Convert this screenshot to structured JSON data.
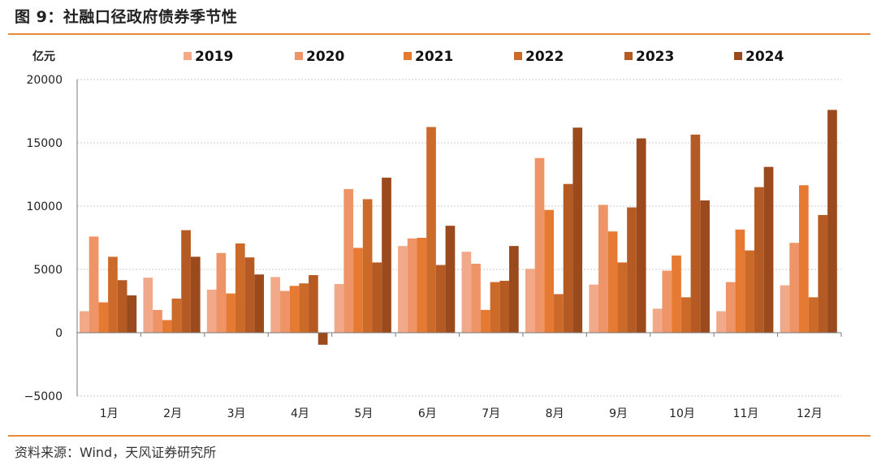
{
  "figure": {
    "title": "图 9：社融口径政府债券季节性",
    "source": "资料来源：Wind，天风证券研究所"
  },
  "colors": {
    "rule": "#E8883A",
    "series": [
      "#F2A98A",
      "#EE9466",
      "#E67A32",
      "#CC6A2A",
      "#B65A24",
      "#9A4A1C"
    ]
  },
  "chart_data": {
    "type": "bar",
    "unit_label": "亿元",
    "categories": [
      "1月",
      "2月",
      "3月",
      "4月",
      "5月",
      "6月",
      "7月",
      "8月",
      "9月",
      "10月",
      "11月",
      "12月"
    ],
    "series": [
      {
        "name": "2019",
        "values": [
          1700,
          4350,
          3400,
          4400,
          3850,
          6850,
          6400,
          5050,
          3800,
          1900,
          1700,
          3750
        ]
      },
      {
        "name": "2020",
        "values": [
          7600,
          1800,
          6300,
          3300,
          11350,
          7450,
          5450,
          13800,
          10100,
          4900,
          4000,
          7100
        ]
      },
      {
        "name": "2021",
        "values": [
          2400,
          1000,
          3100,
          3700,
          6700,
          7500,
          1800,
          9700,
          8000,
          6100,
          8150,
          11650
        ]
      },
      {
        "name": "2022",
        "values": [
          6000,
          2700,
          7050,
          3900,
          10550,
          16250,
          4000,
          3050,
          5550,
          2800,
          6500,
          2800
        ]
      },
      {
        "name": "2023",
        "values": [
          4150,
          8100,
          5950,
          4550,
          5550,
          5350,
          4100,
          11750,
          9900,
          15650,
          11500,
          9300
        ]
      },
      {
        "name": "2024",
        "values": [
          2950,
          6000,
          4600,
          -950,
          12250,
          8450,
          6850,
          16200,
          15350,
          10450,
          13100,
          17600
        ]
      }
    ],
    "ylim": [
      -5000,
      20000
    ],
    "yticks": [
      -5000,
      0,
      5000,
      10000,
      15000,
      20000
    ],
    "ytick_labels": [
      "−5000",
      "0",
      "5000",
      "10000",
      "15000",
      "20000"
    ],
    "grid": true,
    "legend_position": "top"
  }
}
